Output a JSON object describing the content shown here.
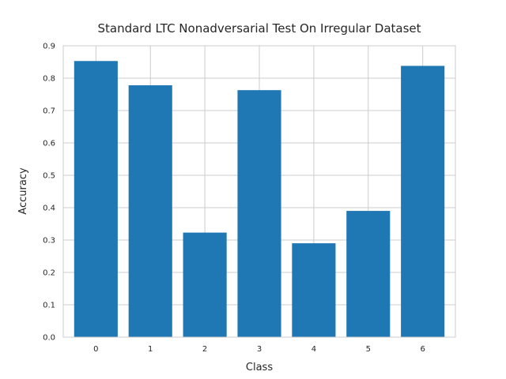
{
  "chart_data": {
    "type": "bar",
    "title": "Standard LTC Nonadversarial Test On Irregular Dataset",
    "xlabel": "Class",
    "ylabel": "Accuracy",
    "categories": [
      "0",
      "1",
      "2",
      "3",
      "4",
      "5",
      "6"
    ],
    "values": [
      0.853,
      0.778,
      0.323,
      0.763,
      0.29,
      0.39,
      0.838
    ],
    "ylim": [
      0,
      0.9
    ],
    "yticks": [
      "0.0",
      "0.1",
      "0.2",
      "0.3",
      "0.4",
      "0.5",
      "0.6",
      "0.7",
      "0.8",
      "0.9"
    ],
    "grid": true,
    "bar_color": "#1f77b4",
    "grid_color": "#cccccc"
  }
}
